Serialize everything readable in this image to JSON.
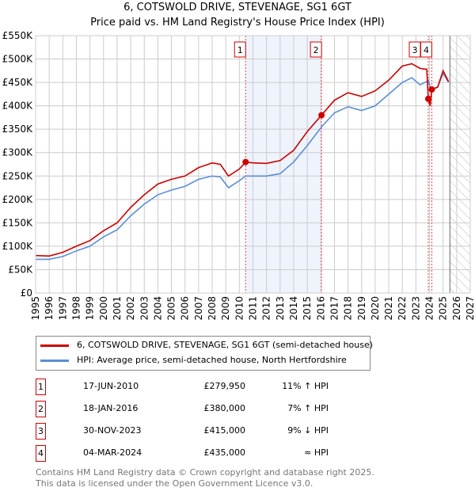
{
  "title": "6, COTSWOLD DRIVE, STEVENAGE, SG1 6GT",
  "subtitle": "Price paid vs. HM Land Registry's House Price Index (HPI)",
  "chart_data": {
    "type": "line",
    "xlim": [
      1995,
      2027
    ],
    "ylim": [
      0,
      550000
    ],
    "x_ticks": [
      "1995",
      "1996",
      "1997",
      "1998",
      "1999",
      "2000",
      "2001",
      "2002",
      "2003",
      "2004",
      "2005",
      "2006",
      "2007",
      "2008",
      "2009",
      "2010",
      "2011",
      "2012",
      "2013",
      "2014",
      "2015",
      "2016",
      "2017",
      "2018",
      "2019",
      "2020",
      "2021",
      "2022",
      "2023",
      "2024",
      "2025",
      "2026",
      "2027"
    ],
    "y_ticks": [
      {
        "v": 0,
        "label": "£0"
      },
      {
        "v": 50000,
        "label": "£50K"
      },
      {
        "v": 100000,
        "label": "£100K"
      },
      {
        "v": 150000,
        "label": "£150K"
      },
      {
        "v": 200000,
        "label": "£200K"
      },
      {
        "v": 250000,
        "label": "£250K"
      },
      {
        "v": 300000,
        "label": "£300K"
      },
      {
        "v": 350000,
        "label": "£350K"
      },
      {
        "v": 400000,
        "label": "£400K"
      },
      {
        "v": 450000,
        "label": "£450K"
      },
      {
        "v": 500000,
        "label": "£500K"
      },
      {
        "v": 550000,
        "label": "£550K"
      }
    ],
    "grid": true,
    "shaded_band": [
      2010.46,
      2016.05
    ],
    "forecast_hatch_from": 2025.5,
    "series": [
      {
        "name": "6, COTSWOLD DRIVE, STEVENAGE, SG1 6GT (semi-detached house)",
        "color": "#cc0000",
        "x": [
          1995,
          1996,
          1997,
          1998,
          1999,
          2000,
          2001,
          2002,
          2003,
          2004,
          2005,
          2006,
          2007,
          2008,
          2008.6,
          2009.2,
          2010,
          2010.46,
          2011,
          2012,
          2013,
          2014,
          2015,
          2016.05,
          2017,
          2018,
          2019,
          2020,
          2021,
          2022,
          2022.7,
          2023.3,
          2023.8,
          2023.91,
          2024.05,
          2024.17,
          2024.6,
          2025,
          2025.4
        ],
        "y": [
          80000,
          79000,
          87000,
          100000,
          112000,
          133000,
          150000,
          183000,
          210000,
          233000,
          243000,
          250000,
          268000,
          278000,
          275000,
          250000,
          265000,
          279950,
          278000,
          277000,
          283000,
          305000,
          345000,
          380000,
          412000,
          428000,
          420000,
          432000,
          455000,
          485000,
          490000,
          480000,
          478000,
          415000,
          400000,
          435000,
          440000,
          475000,
          452000
        ]
      },
      {
        "name": "HPI: Average price, semi-detached house, North Hertfordshire",
        "color": "#5b8fd6",
        "x": [
          1995,
          1996,
          1997,
          1998,
          1999,
          2000,
          2001,
          2002,
          2003,
          2004,
          2005,
          2006,
          2007,
          2008,
          2008.6,
          2009.2,
          2010,
          2010.46,
          2011,
          2012,
          2013,
          2014,
          2015,
          2016.05,
          2017,
          2018,
          2019,
          2020,
          2021,
          2022,
          2022.7,
          2023.3,
          2023.8,
          2023.91,
          2024.05,
          2024.17,
          2024.6,
          2025,
          2025.4
        ],
        "y": [
          72000,
          72000,
          78000,
          90000,
          100000,
          120000,
          135000,
          165000,
          190000,
          210000,
          220000,
          228000,
          243000,
          250000,
          248000,
          225000,
          240000,
          250000,
          250000,
          250000,
          255000,
          280000,
          315000,
          355000,
          385000,
          398000,
          390000,
          400000,
          425000,
          450000,
          460000,
          445000,
          452000,
          455000,
          440000,
          435000,
          440000,
          470000,
          450000
        ]
      }
    ],
    "sales": [
      {
        "label": "1",
        "x": 2010.46,
        "y": 279950,
        "date": "17-JUN-2010",
        "price": "£279,950",
        "rel": "11% ↑ HPI"
      },
      {
        "label": "2",
        "x": 2016.05,
        "y": 380000,
        "date": "18-JAN-2016",
        "price": "£380,000",
        "rel": "7% ↑ HPI"
      },
      {
        "label": "3",
        "x": 2023.91,
        "y": 415000,
        "date": "30-NOV-2023",
        "price": "£415,000",
        "rel": "9% ↓ HPI"
      },
      {
        "label": "4",
        "x": 2024.17,
        "y": 435000,
        "date": "04-MAR-2024",
        "price": "£435,000",
        "rel": "≈ HPI"
      }
    ]
  },
  "legend": {
    "red": "6, COTSWOLD DRIVE, STEVENAGE, SG1 6GT (semi-detached house)",
    "blue": "HPI: Average price, semi-detached house, North Hertfordshire"
  },
  "footer": {
    "line1": "Contains HM Land Registry data © Crown copyright and database right 2025.",
    "line2": "This data is licensed under the Open Government Licence v3.0."
  }
}
